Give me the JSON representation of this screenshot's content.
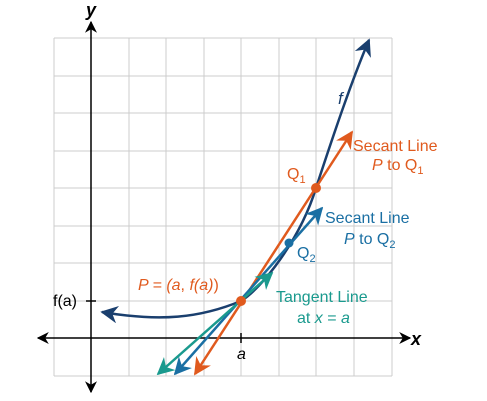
{
  "axes": {
    "x_label": "x",
    "y_label": "y",
    "x_tick_label": "a",
    "y_tick_label": "f(a)"
  },
  "labels": {
    "function_name": "f",
    "point_p_prefix": "P = (",
    "point_p_a": "a",
    "point_p_sep": ", ",
    "point_p_fa": "f(a)",
    "point_p_suffix": ")",
    "q1": "Q",
    "q1_sub": "1",
    "q2": "Q",
    "q2_sub": "2",
    "secant1_line1": "Secant Line",
    "secant1_p": "P",
    "secant1_to": " to Q",
    "secant1_sub": "1",
    "secant2_line1": "Secant Line",
    "secant2_p": "P",
    "secant2_to": " to Q",
    "secant2_sub": "2",
    "tangent_line1": "Tangent Line",
    "tangent_at": "at ",
    "tangent_x": "x",
    "tangent_eq": " = ",
    "tangent_a": "a"
  },
  "colors": {
    "curve": "#1a3f6e",
    "secant_q1": "#e05a1e",
    "secant_q2": "#1a6fa3",
    "tangent": "#1a9a8e",
    "grid": "#cccccc",
    "axis": "#000000"
  }
}
